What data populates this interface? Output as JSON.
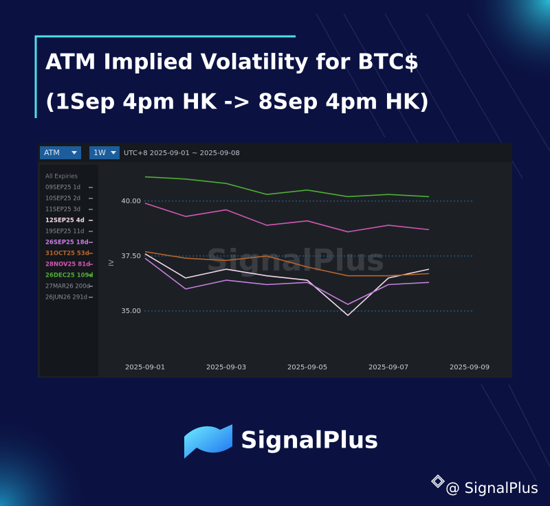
{
  "header": {
    "title_lines": [
      "ATM Implied Volatility for BTC$",
      "(1Sep 4pm HK -> 8Sep 4pm HK)"
    ]
  },
  "chart_data": {
    "type": "line",
    "controls": [
      "ATM",
      "1W",
      "UTC+8 2025-09-01 ~ 2025-09-08"
    ],
    "watermark": "SignalPlus",
    "y_label": "IV",
    "legend_title": "All Expiries",
    "x": [
      "2025-09-01",
      "2025-09-02",
      "2025-09-03",
      "2025-09-04",
      "2025-09-05",
      "2025-09-06",
      "2025-09-07",
      "2025-09-08"
    ],
    "xlim": [
      "2025-08-31",
      "2025-09-10"
    ],
    "xticks": [
      "2025-09-01",
      "2025-09-03",
      "2025-09-05",
      "2025-09-07",
      "2025-09-09"
    ],
    "ylim": [
      32.75,
      41.65
    ],
    "yticks": [
      {
        "value": 35,
        "label": "35.00"
      },
      {
        "value": 37.5,
        "label": "37.50"
      },
      {
        "value": 40,
        "label": "40.00"
      }
    ],
    "grid": true,
    "series": [
      {
        "name": "09SEP25 1d",
        "color": "#8a8f96",
        "values": [
          null,
          null,
          null,
          null,
          null,
          null,
          null,
          null
        ]
      },
      {
        "name": "10SEP25 2d",
        "color": "#8a8f96",
        "values": [
          null,
          null,
          null,
          null,
          null,
          null,
          null,
          null
        ]
      },
      {
        "name": "11SEP25 3d",
        "color": "#8a8f96",
        "values": [
          null,
          null,
          null,
          null,
          null,
          null,
          null,
          null
        ]
      },
      {
        "name": "12SEP25 4d",
        "color": "#f3d9ec",
        "values": [
          37.6,
          36.5,
          36.9,
          36.6,
          36.4,
          34.8,
          36.5,
          36.9
        ]
      },
      {
        "name": "19SEP25 11d",
        "color": "#8a8f96",
        "values": [
          null,
          null,
          null,
          null,
          null,
          null,
          null,
          null
        ]
      },
      {
        "name": "26SEP25 18d",
        "color": "#c77fe0",
        "values": [
          37.4,
          36.0,
          36.4,
          36.2,
          36.3,
          35.3,
          36.2,
          36.3
        ]
      },
      {
        "name": "31OCT25 53d",
        "color": "#b8652c",
        "values": [
          37.7,
          37.4,
          37.3,
          37.5,
          37.0,
          36.6,
          36.6,
          36.7
        ]
      },
      {
        "name": "28NOV25 81d",
        "color": "#d257b4",
        "values": [
          39.9,
          39.3,
          39.6,
          38.9,
          39.1,
          38.6,
          38.9,
          38.7
        ]
      },
      {
        "name": "26DEC25 109d",
        "color": "#4fae35",
        "values": [
          41.1,
          41.0,
          40.8,
          40.3,
          40.5,
          40.2,
          40.3,
          40.2
        ]
      },
      {
        "name": "27MAR26 200d",
        "color": "#8a8f96",
        "values": [
          null,
          null,
          null,
          null,
          null,
          null,
          null,
          null
        ]
      },
      {
        "name": "26JUN26 291d",
        "color": "#8a8f96",
        "values": [
          null,
          null,
          null,
          null,
          null,
          null,
          null,
          null
        ]
      }
    ]
  },
  "footer": {
    "brand": "SignalPlus",
    "handle": "@ SignalPlus"
  }
}
